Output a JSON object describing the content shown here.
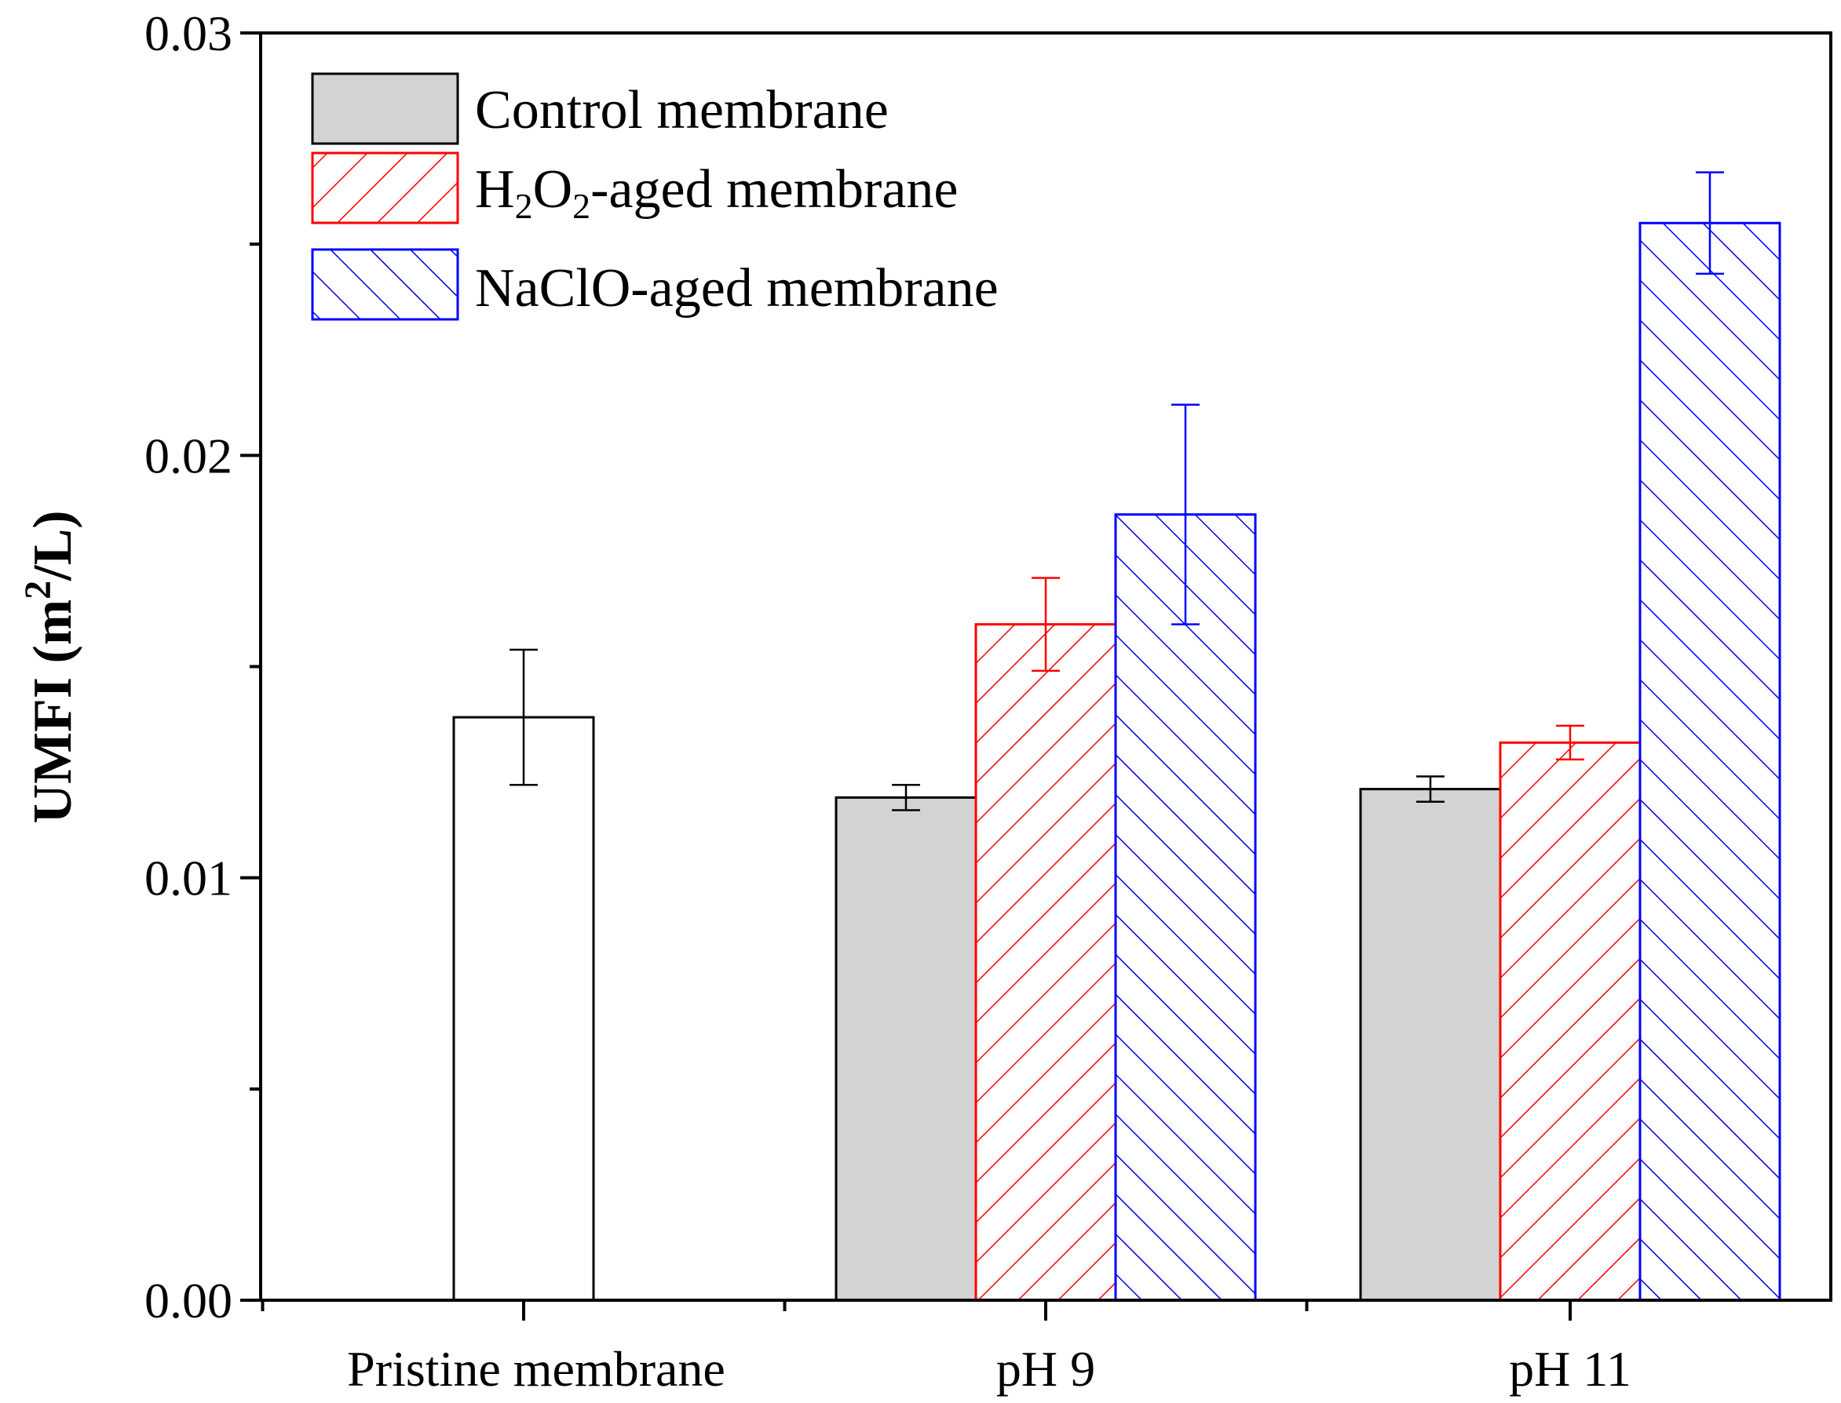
{
  "chart_data": {
    "type": "bar",
    "title": "",
    "xlabel": "",
    "ylabel": {
      "text": "UMFI (m",
      "superscript": "2",
      "suffix": "/L)"
    },
    "ylim": [
      0,
      0.03
    ],
    "yticks": [
      "0.00",
      "0.01",
      "0.02",
      "0.03"
    ],
    "minor_ticks": [
      0.005,
      0.015,
      0.025
    ],
    "categories": [
      "Pristine membrane",
      "pH 9",
      "pH 11"
    ],
    "pristine": {
      "name": "Pristine membrane",
      "value": 0.0138,
      "error": 0.0016,
      "fill": "#ffffff",
      "stroke": "#000000"
    },
    "series": [
      {
        "name": "Control membrane",
        "values": [
          null,
          0.0119,
          0.0121
        ],
        "errors": [
          null,
          0.0003,
          0.0003
        ],
        "fill": "#d3d3d3",
        "stroke": "#000000",
        "pattern": "solid"
      },
      {
        "name": "H2O2-aged membrane",
        "values": [
          null,
          0.016,
          0.0132
        ],
        "errors": [
          null,
          0.0011,
          0.0004
        ],
        "fill": "#ffffff",
        "stroke": "#ff0000",
        "pattern": "forward-hatch"
      },
      {
        "name": "NaClO-aged membrane",
        "values": [
          null,
          0.0186,
          0.0255
        ],
        "errors": [
          null,
          0.0026,
          0.0012
        ],
        "fill": "#ffffff",
        "stroke": "#0000ff",
        "pattern": "back-hatch"
      }
    ],
    "legend": {
      "position": "top-left",
      "entries": [
        {
          "pre": "Control membrane",
          "parts": []
        },
        {
          "pre": "H",
          "parts": [
            {
              "sub": "2"
            },
            {
              "text": "O"
            },
            {
              "sub": "2"
            },
            {
              "text": "-aged membrane"
            }
          ]
        },
        {
          "pre": "NaClO-aged membrane",
          "parts": []
        }
      ]
    }
  }
}
